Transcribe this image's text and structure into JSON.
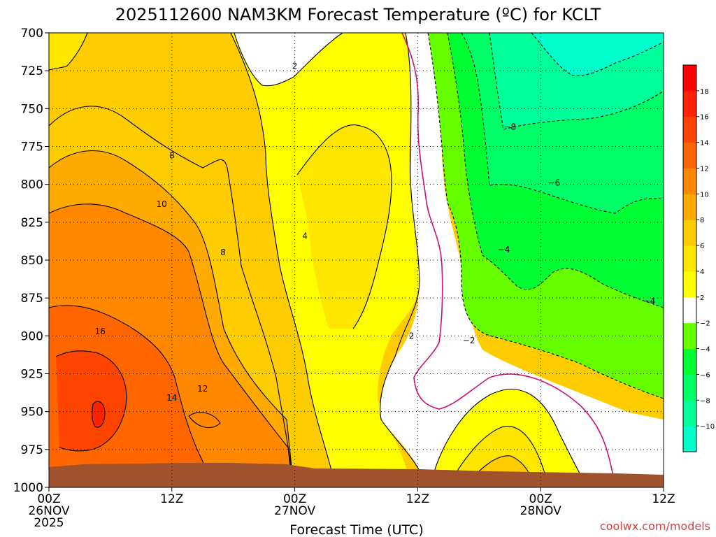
{
  "chart_data": {
    "type": "heatmap",
    "title": "2025112600  NAM3KM Forecast Temperature (ºC) for KCLT",
    "xlabel": "Forecast Time (UTC)",
    "ylabel": "",
    "credit": "coolwx.com/models",
    "x_ticks": [
      {
        "hour": 0,
        "lines": [
          "00Z",
          "26NOV",
          "2025"
        ]
      },
      {
        "hour": 12,
        "lines": [
          "12Z"
        ]
      },
      {
        "hour": 24,
        "lines": [
          "00Z",
          "27NOV"
        ]
      },
      {
        "hour": 36,
        "lines": [
          "12Z"
        ]
      },
      {
        "hour": 48,
        "lines": [
          "00Z",
          "28NOV"
        ]
      },
      {
        "hour": 60,
        "lines": [
          "12Z"
        ]
      }
    ],
    "xlim": [
      0,
      60
    ],
    "y_ticks": [
      700,
      725,
      750,
      775,
      800,
      825,
      850,
      875,
      900,
      925,
      950,
      975,
      1000
    ],
    "ylim": [
      700,
      1000
    ],
    "grid": true,
    "colorbar": {
      "levels": [
        -10,
        -8,
        -6,
        -4,
        -2,
        2,
        4,
        6,
        8,
        10,
        12,
        14,
        16,
        18
      ],
      "colors": [
        "#00ffcc",
        "#00ff99",
        "#00ff66",
        "#00ff33",
        "#66ff00",
        "#ffffff",
        "#ffff00",
        "#ffe600",
        "#ffcc00",
        "#ffaa00",
        "#ff8800",
        "#ff6600",
        "#ff4400",
        "#ff2200",
        "#ff0000"
      ]
    },
    "contour_labels": [
      {
        "text": "2",
        "hour": 24.0,
        "pres": 722
      },
      {
        "text": "−8",
        "hour": 45.0,
        "pres": 762
      },
      {
        "text": "8",
        "hour": 12.0,
        "pres": 781
      },
      {
        "text": "−6",
        "hour": 49.3,
        "pres": 799
      },
      {
        "text": "10",
        "hour": 11.0,
        "pres": 813
      },
      {
        "text": "4",
        "hour": 25.0,
        "pres": 834
      },
      {
        "text": "−4",
        "hour": 44.4,
        "pres": 843
      },
      {
        "text": "8",
        "hour": 17.0,
        "pres": 845
      },
      {
        "text": "−4",
        "hour": 58.6,
        "pres": 877
      },
      {
        "text": "16",
        "hour": 5.0,
        "pres": 897
      },
      {
        "text": "2",
        "hour": 35.4,
        "pres": 900
      },
      {
        "text": "−2",
        "hour": 41.0,
        "pres": 903
      },
      {
        "text": "12",
        "hour": 15.0,
        "pres": 935
      },
      {
        "text": "14",
        "hour": 12.0,
        "pres": 941
      }
    ]
  }
}
